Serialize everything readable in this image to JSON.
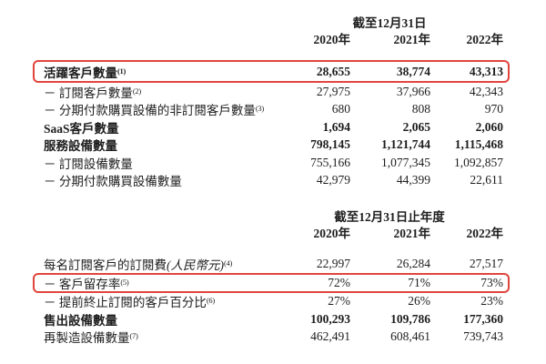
{
  "colors": {
    "highlight_box": "#e0453d",
    "text": "#1e1e1e",
    "background": "#ffffff"
  },
  "table1": {
    "period_header": "截至12月31日",
    "years": [
      "2020年",
      "2021年",
      "2022年"
    ],
    "rows": [
      {
        "label": "活躍客戶數量",
        "sup": "(1)",
        "values": [
          "28,655",
          "38,774",
          "43,313"
        ]
      },
      {
        "label": "－ 訂閱客戶數量",
        "sup": "(2)",
        "values": [
          "27,975",
          "37,966",
          "42,343"
        ]
      },
      {
        "label": "－ 分期付款購買設備的非訂閱客戶數量",
        "sup": "(3)",
        "values": [
          "680",
          "808",
          "970"
        ]
      },
      {
        "label": "SaaS客戶數量",
        "values": [
          "1,694",
          "2,065",
          "2,060"
        ]
      },
      {
        "label": "服務設備數量",
        "values": [
          "798,145",
          "1,121,744",
          "1,115,468"
        ]
      },
      {
        "label": "－ 訂閱設備數量",
        "values": [
          "755,166",
          "1,077,345",
          "1,092,857"
        ]
      },
      {
        "label": "－ 分期付款購買設備數量",
        "values": [
          "42,979",
          "44,399",
          "22,611"
        ]
      }
    ]
  },
  "table2": {
    "period_header": "截至12月31日止年度",
    "years": [
      "2020年",
      "2021年",
      "2022年"
    ],
    "rows": [
      {
        "label": "每名訂閱客戶的訂閱費",
        "label_italic": "(人民幣元)",
        "sup": "(4)",
        "values": [
          "22,997",
          "26,284",
          "27,517"
        ]
      },
      {
        "label": "－ 客戶留存率",
        "sup": "(5)",
        "values": [
          "72%",
          "71%",
          "73%"
        ]
      },
      {
        "label": "－ 提前終止訂閱的客戶百分比",
        "sup": "(6)",
        "values": [
          "27%",
          "26%",
          "23%"
        ]
      },
      {
        "label": "售出設備數量",
        "values": [
          "100,293",
          "109,786",
          "177,360"
        ]
      },
      {
        "label": "再製造設備數量",
        "sup": "(7)",
        "values": [
          "462,491",
          "608,461",
          "739,743"
        ]
      }
    ]
  }
}
